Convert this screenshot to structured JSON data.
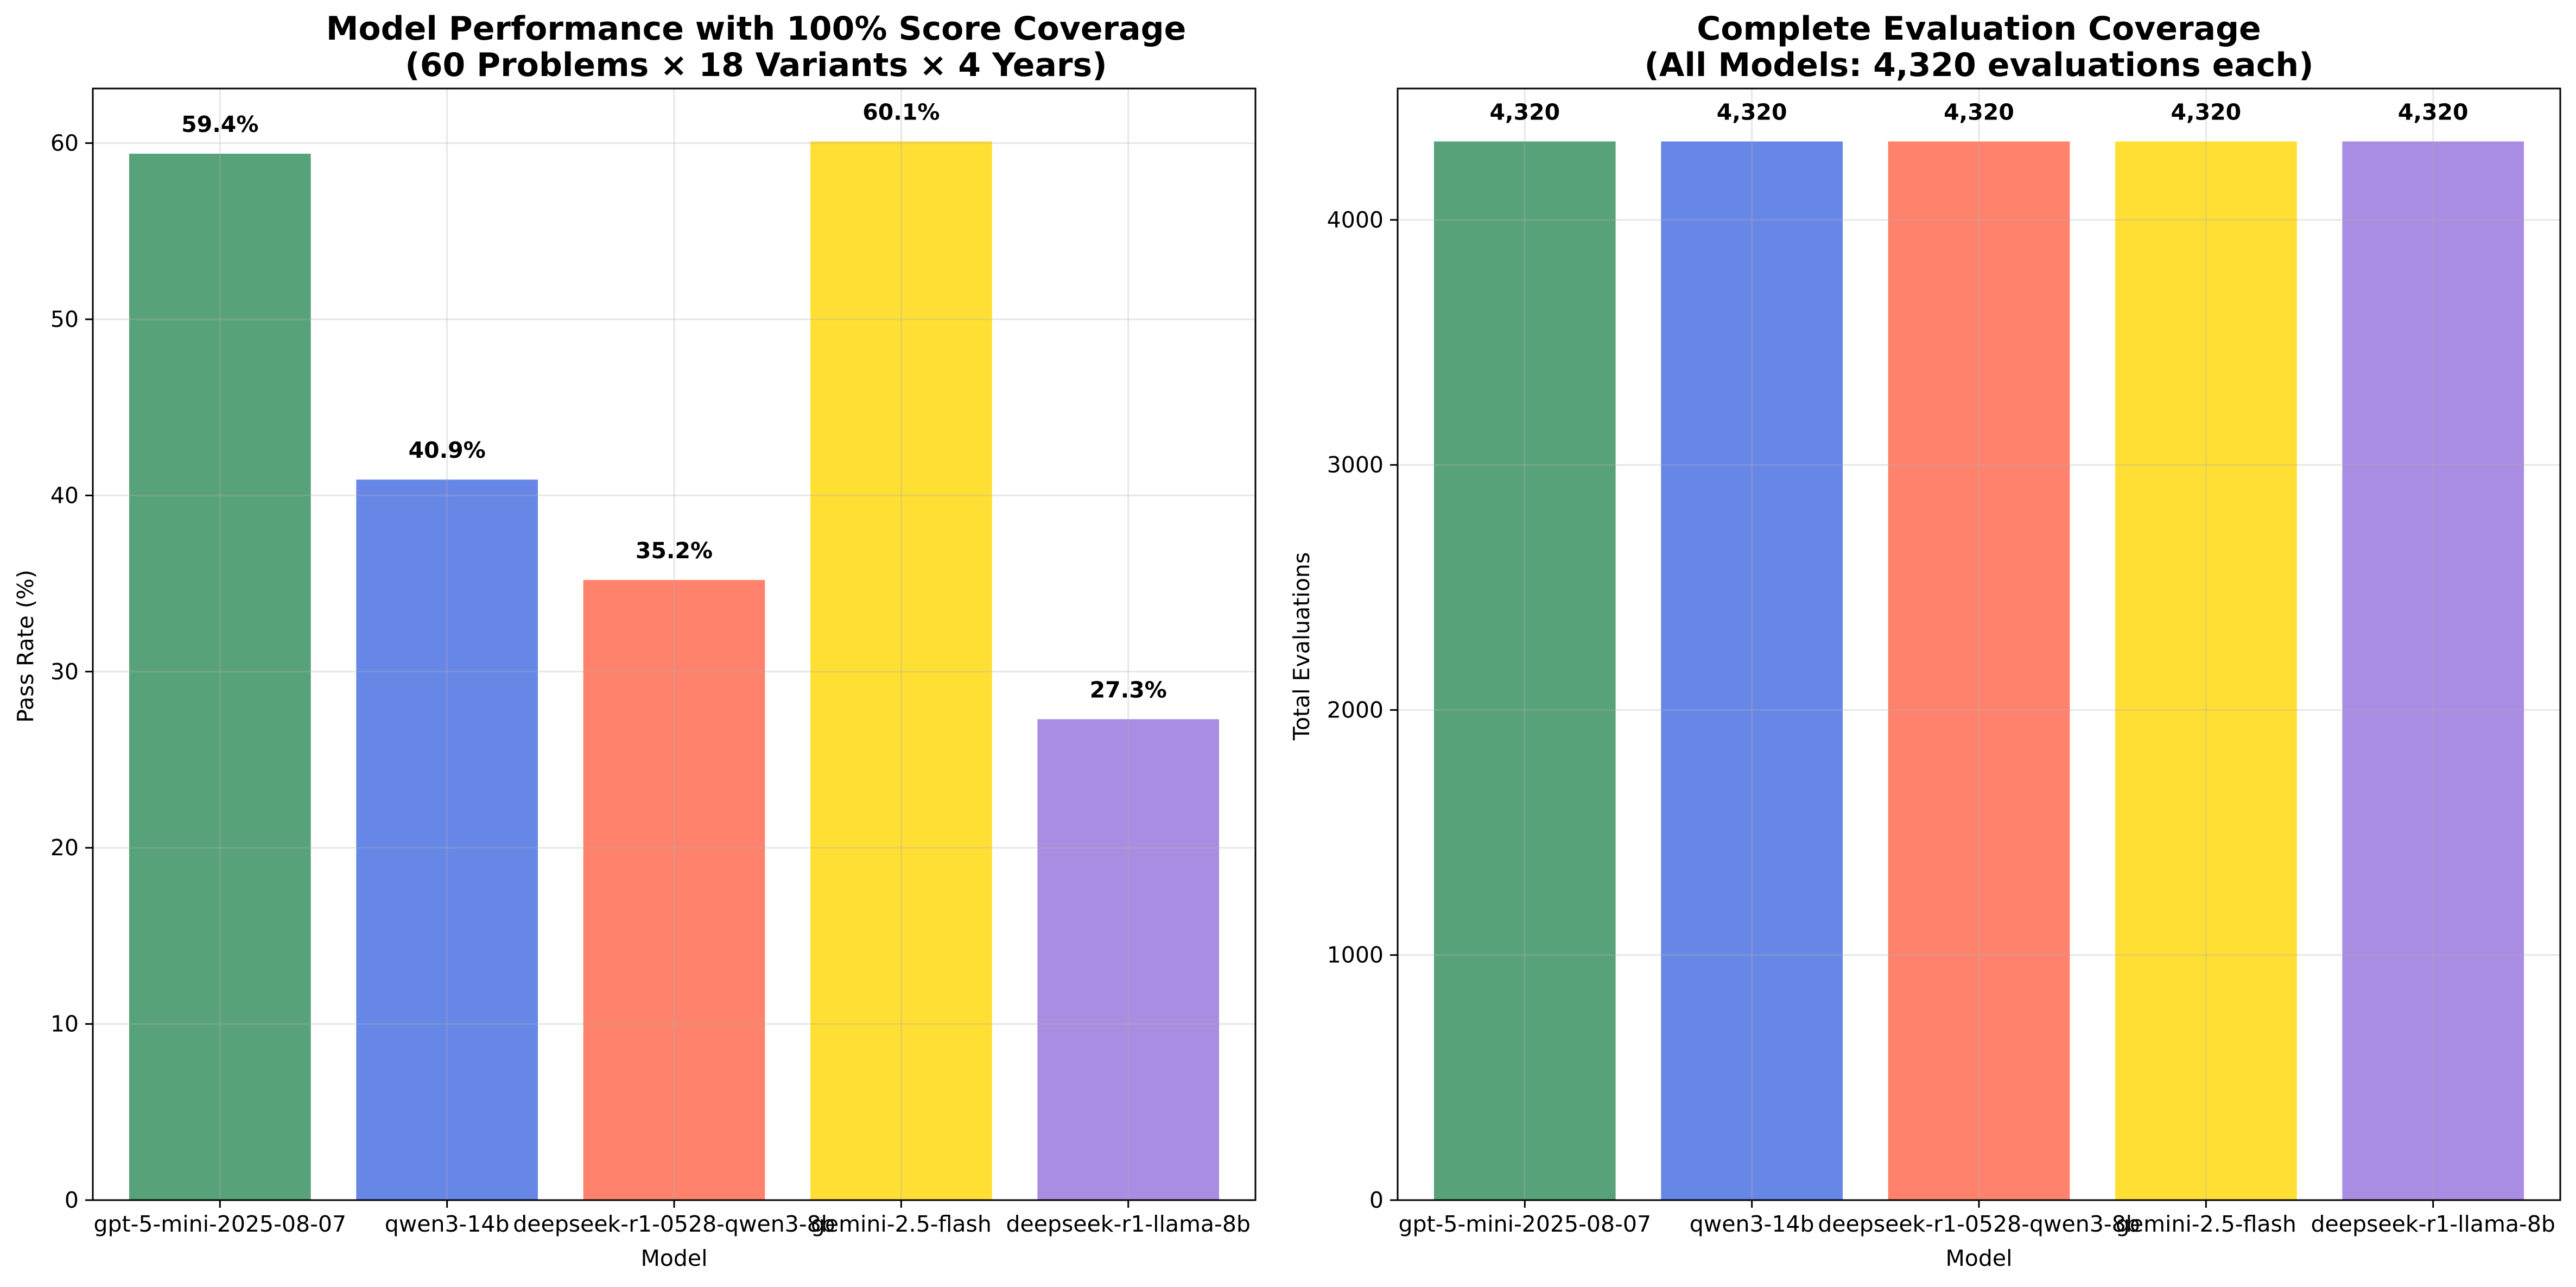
{
  "chart_data": [
    {
      "type": "bar",
      "title_line1": "Model Performance with 100% Score Coverage",
      "title_line2": "(60 Problems × 18 Variants × 4 Years)",
      "xlabel": "Model",
      "ylabel": "Pass Rate (%)",
      "categories": [
        "gpt-5-mini-2025-08-07",
        "qwen3-14b",
        "deepseek-r1-0528-qwen3-8b",
        "gemini-2.5-flash",
        "deepseek-r1-llama-8b"
      ],
      "values": [
        59.4,
        40.9,
        35.2,
        60.1,
        27.3
      ],
      "data_labels": [
        "59.4%",
        "40.9%",
        "35.2%",
        "60.1%",
        "27.3%"
      ],
      "colors": [
        "#2e8b57",
        "#4169e1",
        "#ff6347",
        "#ffd700",
        "#9370db"
      ],
      "ylim": [
        0,
        63.1
      ],
      "yticks": [
        0,
        10,
        20,
        30,
        40,
        50,
        60
      ],
      "ytick_labels": [
        "0",
        "10",
        "20",
        "30",
        "40",
        "50",
        "60"
      ],
      "grid": true
    },
    {
      "type": "bar",
      "title_line1": "Complete Evaluation Coverage",
      "title_line2": "(All Models: 4,320 evaluations each)",
      "xlabel": "Model",
      "ylabel": "Total Evaluations",
      "categories": [
        "gpt-5-mini-2025-08-07",
        "qwen3-14b",
        "deepseek-r1-0528-qwen3-8b",
        "gemini-2.5-flash",
        "deepseek-r1-llama-8b"
      ],
      "values": [
        4320,
        4320,
        4320,
        4320,
        4320
      ],
      "data_labels": [
        "4,320",
        "4,320",
        "4,320",
        "4,320",
        "4,320"
      ],
      "colors": [
        "#2e8b57",
        "#4169e1",
        "#ff6347",
        "#ffd700",
        "#9370db"
      ],
      "ylim": [
        0,
        4536
      ],
      "yticks": [
        0,
        1000,
        2000,
        3000,
        4000
      ],
      "ytick_labels": [
        "0",
        "1000",
        "2000",
        "3000",
        "4000"
      ],
      "grid": true
    }
  ]
}
